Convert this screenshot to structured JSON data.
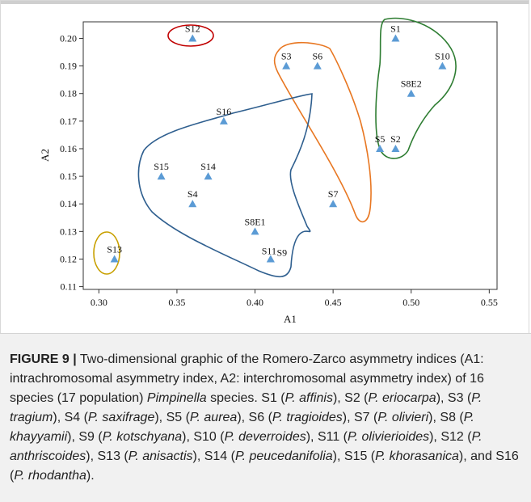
{
  "chart_data": {
    "type": "scatter",
    "xlabel": "A1",
    "ylabel": "A2",
    "xlim": [
      0.29,
      0.555
    ],
    "ylim": [
      0.109,
      0.206
    ],
    "xticks": [
      0.3,
      0.35,
      0.4,
      0.45,
      0.5,
      0.55
    ],
    "xtick_labels": [
      "0.30",
      "0.35",
      "0.40",
      "0.45",
      "0.50",
      "0.55"
    ],
    "yticks": [
      0.11,
      0.12,
      0.13,
      0.14,
      0.15,
      0.16,
      0.17,
      0.18,
      0.19,
      0.2
    ],
    "ytick_labels": [
      "0.11",
      "0.12",
      "0.13",
      "0.14",
      "0.15",
      "0.16",
      "0.17",
      "0.18",
      "0.19",
      "0.20"
    ],
    "marker_color": "#5b9bd5",
    "points": [
      {
        "label": "S1",
        "x": 0.49,
        "y": 0.2
      },
      {
        "label": "S2",
        "x": 0.49,
        "y": 0.16
      },
      {
        "label": "S3",
        "x": 0.42,
        "y": 0.19
      },
      {
        "label": "S4",
        "x": 0.36,
        "y": 0.14
      },
      {
        "label": "S5",
        "x": 0.48,
        "y": 0.16
      },
      {
        "label": "S6",
        "x": 0.44,
        "y": 0.19
      },
      {
        "label": "S7",
        "x": 0.45,
        "y": 0.14
      },
      {
        "label": "S8E1",
        "x": 0.4,
        "y": 0.13
      },
      {
        "label": "S8E2",
        "x": 0.5,
        "y": 0.18
      },
      {
        "label": "S9",
        "x": 0.41,
        "y": 0.12
      },
      {
        "label": "S10",
        "x": 0.52,
        "y": 0.19
      },
      {
        "label": "S11",
        "x": 0.41,
        "y": 0.12
      },
      {
        "label": "S12",
        "x": 0.36,
        "y": 0.2
      },
      {
        "label": "S13",
        "x": 0.31,
        "y": 0.12
      },
      {
        "label": "S14",
        "x": 0.37,
        "y": 0.15
      },
      {
        "label": "S15",
        "x": 0.34,
        "y": 0.15
      },
      {
        "label": "S16",
        "x": 0.38,
        "y": 0.17
      }
    ],
    "groups": [
      {
        "color": "#2e7d32",
        "members": [
          "S1",
          "S10",
          "S8E2",
          "S5",
          "S2"
        ]
      },
      {
        "color": "#e87722",
        "members": [
          "S3",
          "S6",
          "S7"
        ]
      },
      {
        "color": "#2f5f8f",
        "members": [
          "S16",
          "S15",
          "S14",
          "S4",
          "S8E1",
          "S11",
          "S9"
        ]
      },
      {
        "color": "#c00000",
        "members": [
          "S12"
        ]
      },
      {
        "color": "#c8a000",
        "members": [
          "S13"
        ]
      }
    ]
  },
  "caption": {
    "label": "FIGURE 9 |",
    "segments": [
      {
        "text": " Two-dimensional graphic of the Romero-Zarco asymmetry indices (A1: intrachromosomal asymmetry index, A2: interchromosomal asymmetry index) of 16 species (17 population) ",
        "italic": false
      },
      {
        "text": "Pimpinella",
        "italic": true
      },
      {
        "text": " species. S1 (",
        "italic": false
      },
      {
        "text": "P. affinis",
        "italic": true
      },
      {
        "text": "), S2 (",
        "italic": false
      },
      {
        "text": "P. eriocarpa",
        "italic": true
      },
      {
        "text": "), S3 (",
        "italic": false
      },
      {
        "text": "P. tragium",
        "italic": true
      },
      {
        "text": "), S4 (",
        "italic": false
      },
      {
        "text": "P. saxifrage",
        "italic": true
      },
      {
        "text": "), S5 (",
        "italic": false
      },
      {
        "text": "P. aurea",
        "italic": true
      },
      {
        "text": "), S6 (",
        "italic": false
      },
      {
        "text": "P. tragioides",
        "italic": true
      },
      {
        "text": "), S7 (",
        "italic": false
      },
      {
        "text": "P. olivieri",
        "italic": true
      },
      {
        "text": "), S8 (",
        "italic": false
      },
      {
        "text": "P. khayyamii",
        "italic": true
      },
      {
        "text": "), S9 (",
        "italic": false
      },
      {
        "text": "P. kotschyana",
        "italic": true
      },
      {
        "text": "), S10 (",
        "italic": false
      },
      {
        "text": "P. deverroides",
        "italic": true
      },
      {
        "text": "), S11 (",
        "italic": false
      },
      {
        "text": "P. olivierioides",
        "italic": true
      },
      {
        "text": "), S12 (",
        "italic": false
      },
      {
        "text": "P. anthriscoides",
        "italic": true
      },
      {
        "text": "), S13 (",
        "italic": false
      },
      {
        "text": "P. anisactis",
        "italic": true
      },
      {
        "text": "), S14 (",
        "italic": false
      },
      {
        "text": "P. peucedanifolia",
        "italic": true
      },
      {
        "text": "), S15 (",
        "italic": false
      },
      {
        "text": "P. khorasanica",
        "italic": true
      },
      {
        "text": "), and S16 (",
        "italic": false
      },
      {
        "text": "P. rhodantha",
        "italic": true
      },
      {
        "text": ").",
        "italic": false
      }
    ]
  }
}
